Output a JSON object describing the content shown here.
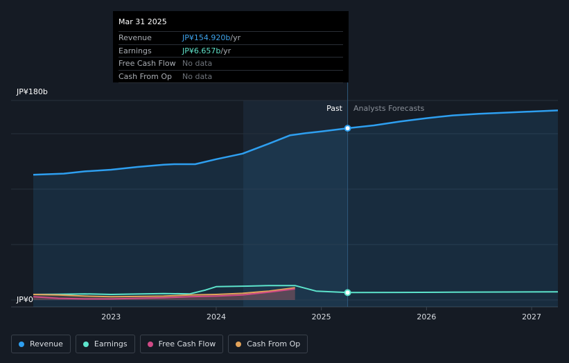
{
  "tooltip": {
    "date": "Mar 31 2025",
    "rows": [
      {
        "label": "Revenue",
        "value": "JP¥154.920b",
        "unit": " /yr",
        "color": "#3ea2ea"
      },
      {
        "label": "Earnings",
        "value": "JP¥6.657b",
        "unit": " /yr",
        "color": "#5fe0c8"
      },
      {
        "label": "Free Cash Flow",
        "value": "No data",
        "unit": "",
        "color": "#6f747b"
      },
      {
        "label": "Cash From Op",
        "value": "No data",
        "unit": "",
        "color": "#6f747b"
      }
    ]
  },
  "labels": {
    "past": "Past",
    "forecast": "Analysts Forecasts"
  },
  "legend": [
    {
      "label": "Revenue",
      "color": "#2e9ff0"
    },
    {
      "label": "Earnings",
      "color": "#5de4cc"
    },
    {
      "label": "Free Cash Flow",
      "color": "#d04a86"
    },
    {
      "label": "Cash From Op",
      "color": "#e3a35a"
    }
  ],
  "colors": {
    "revenue": "#2e9ff0",
    "earnings": "#5de4cc",
    "fcf": "#d04a86",
    "cfo": "#e3a35a"
  },
  "chart_data": {
    "type": "area",
    "title": "",
    "xlabel": "",
    "ylabel": "",
    "unit": "JP¥ billions",
    "ylim": [
      0,
      180
    ],
    "xlim": [
      2022.26,
      2027.25
    ],
    "y_tick_labels": [
      "JP¥0",
      "JP¥180b"
    ],
    "x_ticks": [
      2023,
      2024,
      2025,
      2026,
      2027
    ],
    "x_tick_labels": [
      "2023",
      "2024",
      "2025",
      "2026",
      "2027"
    ],
    "past_forecast_split": 2025.25,
    "highlight": {
      "x": 2025.25,
      "revenue": 154.92,
      "earnings": 6.657
    },
    "series": [
      {
        "name": "Revenue",
        "key": "revenue",
        "points": [
          [
            2022.26,
            113
          ],
          [
            2022.55,
            114
          ],
          [
            2022.75,
            116
          ],
          [
            2023.0,
            117.5
          ],
          [
            2023.25,
            120
          ],
          [
            2023.5,
            122
          ],
          [
            2023.6,
            122.5
          ],
          [
            2023.8,
            122.5
          ],
          [
            2024.0,
            127
          ],
          [
            2024.25,
            132
          ],
          [
            2024.5,
            141
          ],
          [
            2024.7,
            148.5
          ],
          [
            2024.85,
            150.5
          ],
          [
            2025.0,
            152
          ],
          [
            2025.25,
            154.92
          ],
          [
            2025.5,
            157.5
          ],
          [
            2025.75,
            161
          ],
          [
            2026.0,
            164
          ],
          [
            2026.25,
            166.5
          ],
          [
            2026.5,
            168
          ],
          [
            2026.75,
            169
          ],
          [
            2027.0,
            170
          ],
          [
            2027.25,
            171
          ]
        ]
      },
      {
        "name": "Earnings",
        "key": "earnings",
        "points": [
          [
            2022.26,
            5
          ],
          [
            2022.5,
            5.2
          ],
          [
            2022.75,
            5.5
          ],
          [
            2023.0,
            5
          ],
          [
            2023.3,
            5.5
          ],
          [
            2023.5,
            5.8
          ],
          [
            2023.75,
            5.5
          ],
          [
            2023.9,
            9
          ],
          [
            2024.0,
            12
          ],
          [
            2024.3,
            12.5
          ],
          [
            2024.5,
            13
          ],
          [
            2024.75,
            13
          ],
          [
            2024.95,
            8
          ],
          [
            2025.25,
            6.657
          ],
          [
            2025.75,
            6.8
          ],
          [
            2026.25,
            7
          ],
          [
            2026.75,
            7.2
          ],
          [
            2027.25,
            7.3
          ]
        ]
      },
      {
        "name": "Free Cash Flow",
        "key": "fcf",
        "points": [
          [
            2022.26,
            3
          ],
          [
            2022.5,
            1.5
          ],
          [
            2022.75,
            1
          ],
          [
            2023.0,
            1
          ],
          [
            2023.25,
            1.5
          ],
          [
            2023.5,
            2
          ],
          [
            2023.75,
            3
          ],
          [
            2024.0,
            3.5
          ],
          [
            2024.25,
            4.5
          ],
          [
            2024.5,
            7
          ],
          [
            2024.75,
            10
          ]
        ]
      },
      {
        "name": "Cash From Op",
        "key": "cfo",
        "points": [
          [
            2022.26,
            5
          ],
          [
            2022.5,
            4.5
          ],
          [
            2022.75,
            3.5
          ],
          [
            2023.0,
            3
          ],
          [
            2023.25,
            3.2
          ],
          [
            2023.5,
            3.5
          ],
          [
            2023.75,
            4.5
          ],
          [
            2024.0,
            5
          ],
          [
            2024.25,
            6
          ],
          [
            2024.5,
            8
          ],
          [
            2024.75,
            11
          ]
        ]
      }
    ]
  }
}
